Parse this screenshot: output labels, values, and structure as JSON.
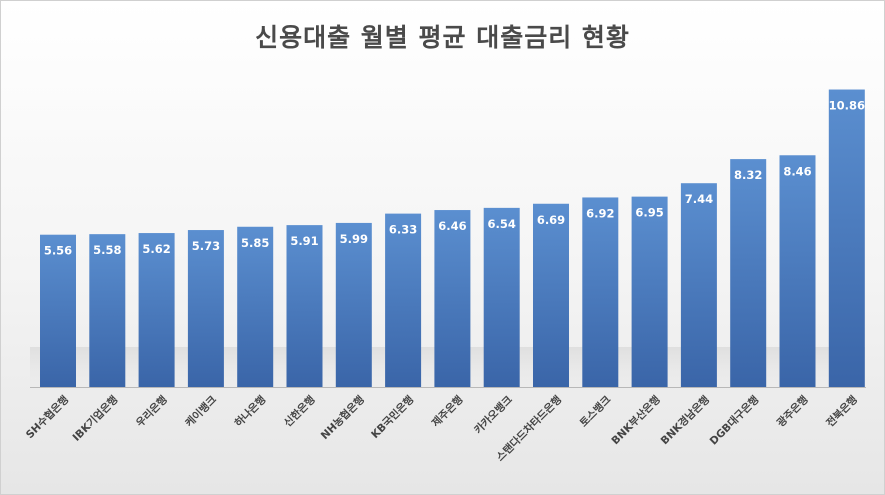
{
  "chart_data": {
    "type": "bar",
    "title": "신용대출 월별 평균 대출금리 현황",
    "categories": [
      "SH수협은행",
      "IBK기업은행",
      "우리은행",
      "케이뱅크",
      "하나은행",
      "신한은행",
      "NH농협은행",
      "KB국민은행",
      "제주은행",
      "카카오뱅크",
      "스탠다드차타드은행",
      "토스뱅크",
      "BNK부산은행",
      "BNK경남은행",
      "DGB대구은행",
      "광주은행",
      "전북은행"
    ],
    "values": [
      5.56,
      5.58,
      5.62,
      5.73,
      5.85,
      5.91,
      5.99,
      6.33,
      6.46,
      6.54,
      6.69,
      6.92,
      6.95,
      7.44,
      8.32,
      8.46,
      10.86
    ],
    "value_labels": [
      "5.56",
      "5.58",
      "5.62",
      "5.73",
      "5.85",
      "5.91",
      "5.99",
      "6.33",
      "6.46",
      "6.54",
      "6.69",
      "6.92",
      "6.95",
      "7.44",
      "8.32",
      "8.46",
      "10.86"
    ],
    "xlabel": "",
    "ylabel": "",
    "ylim": [
      0,
      11.5
    ],
    "grid": false,
    "legend": "none",
    "bar_color_top": "#5b8fd0",
    "bar_color_bottom": "#3a65a8",
    "label_color": "#ffffff"
  }
}
